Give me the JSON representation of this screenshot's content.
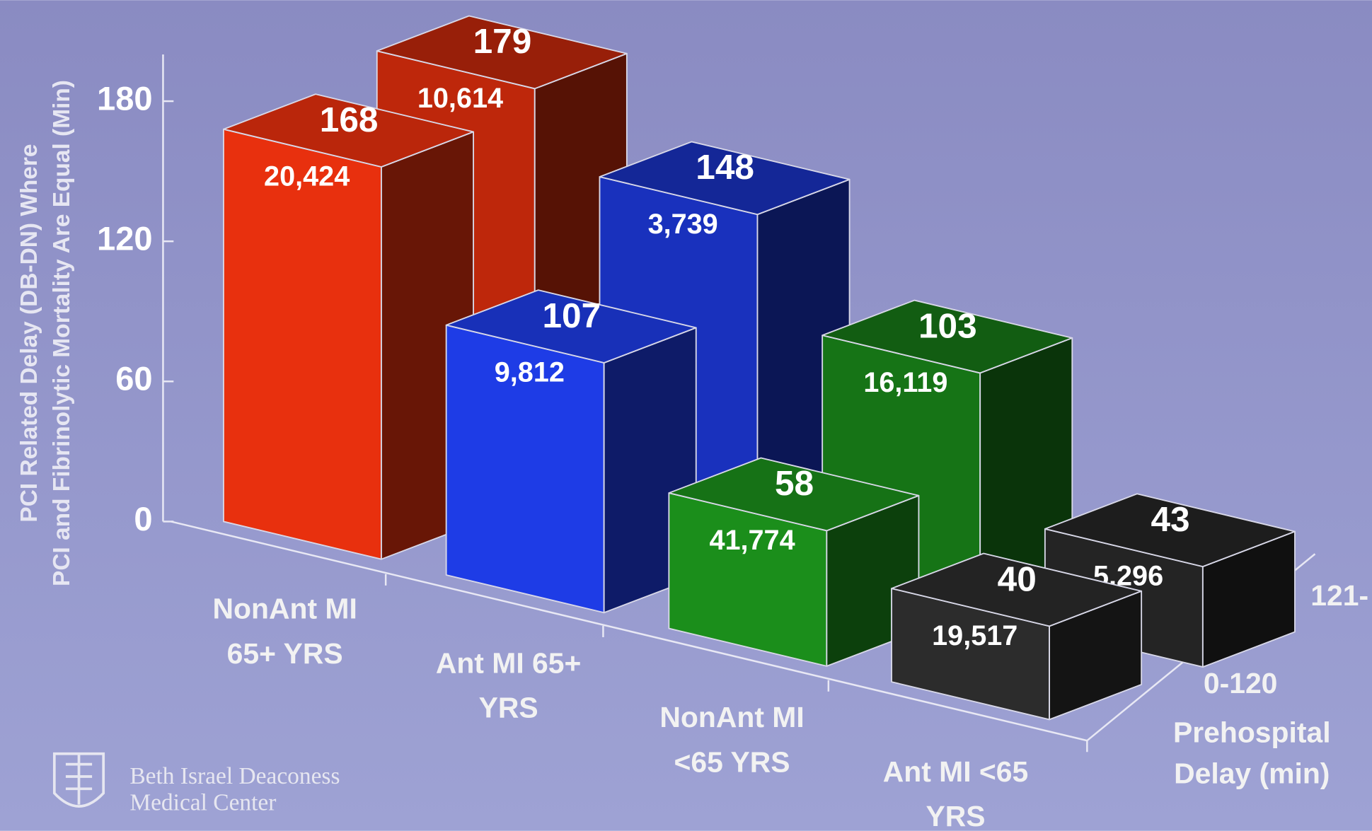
{
  "chart_data": {
    "type": "bar",
    "ylabel": [
      "PCI Related Delay (DB-DN) Where",
      "PCI and Fibrinolytic Mortality Are Equal (Min)"
    ],
    "zlabel": [
      "Prehospital",
      "Delay (min)"
    ],
    "categories": [
      [
        "NonAnt MI",
        "65+ YRS"
      ],
      [
        "Ant MI 65+",
        "YRS"
      ],
      [
        "NonAnt MI",
        "<65 YRS"
      ],
      [
        "Ant MI <65",
        "YRS"
      ]
    ],
    "category_colors": [
      "#e8300e",
      "#1e3ce6",
      "#1b8e1b",
      "#2c2c2c"
    ],
    "series": [
      {
        "name": "0-120",
        "values": [
          168,
          107,
          58,
          40
        ],
        "count_labels": [
          "20,424",
          "9,812",
          "41,774",
          "19,517"
        ]
      },
      {
        "name": "121-",
        "values": [
          179,
          148,
          103,
          43
        ],
        "count_labels": [
          "10,614",
          "3,739",
          "16,119",
          "5,296"
        ]
      }
    ],
    "ylim": [
      0,
      200
    ],
    "yticks": [
      0,
      60,
      120,
      180
    ],
    "grid": false
  },
  "logo": [
    "Beth Israel Deaconess",
    "Medical Center"
  ]
}
